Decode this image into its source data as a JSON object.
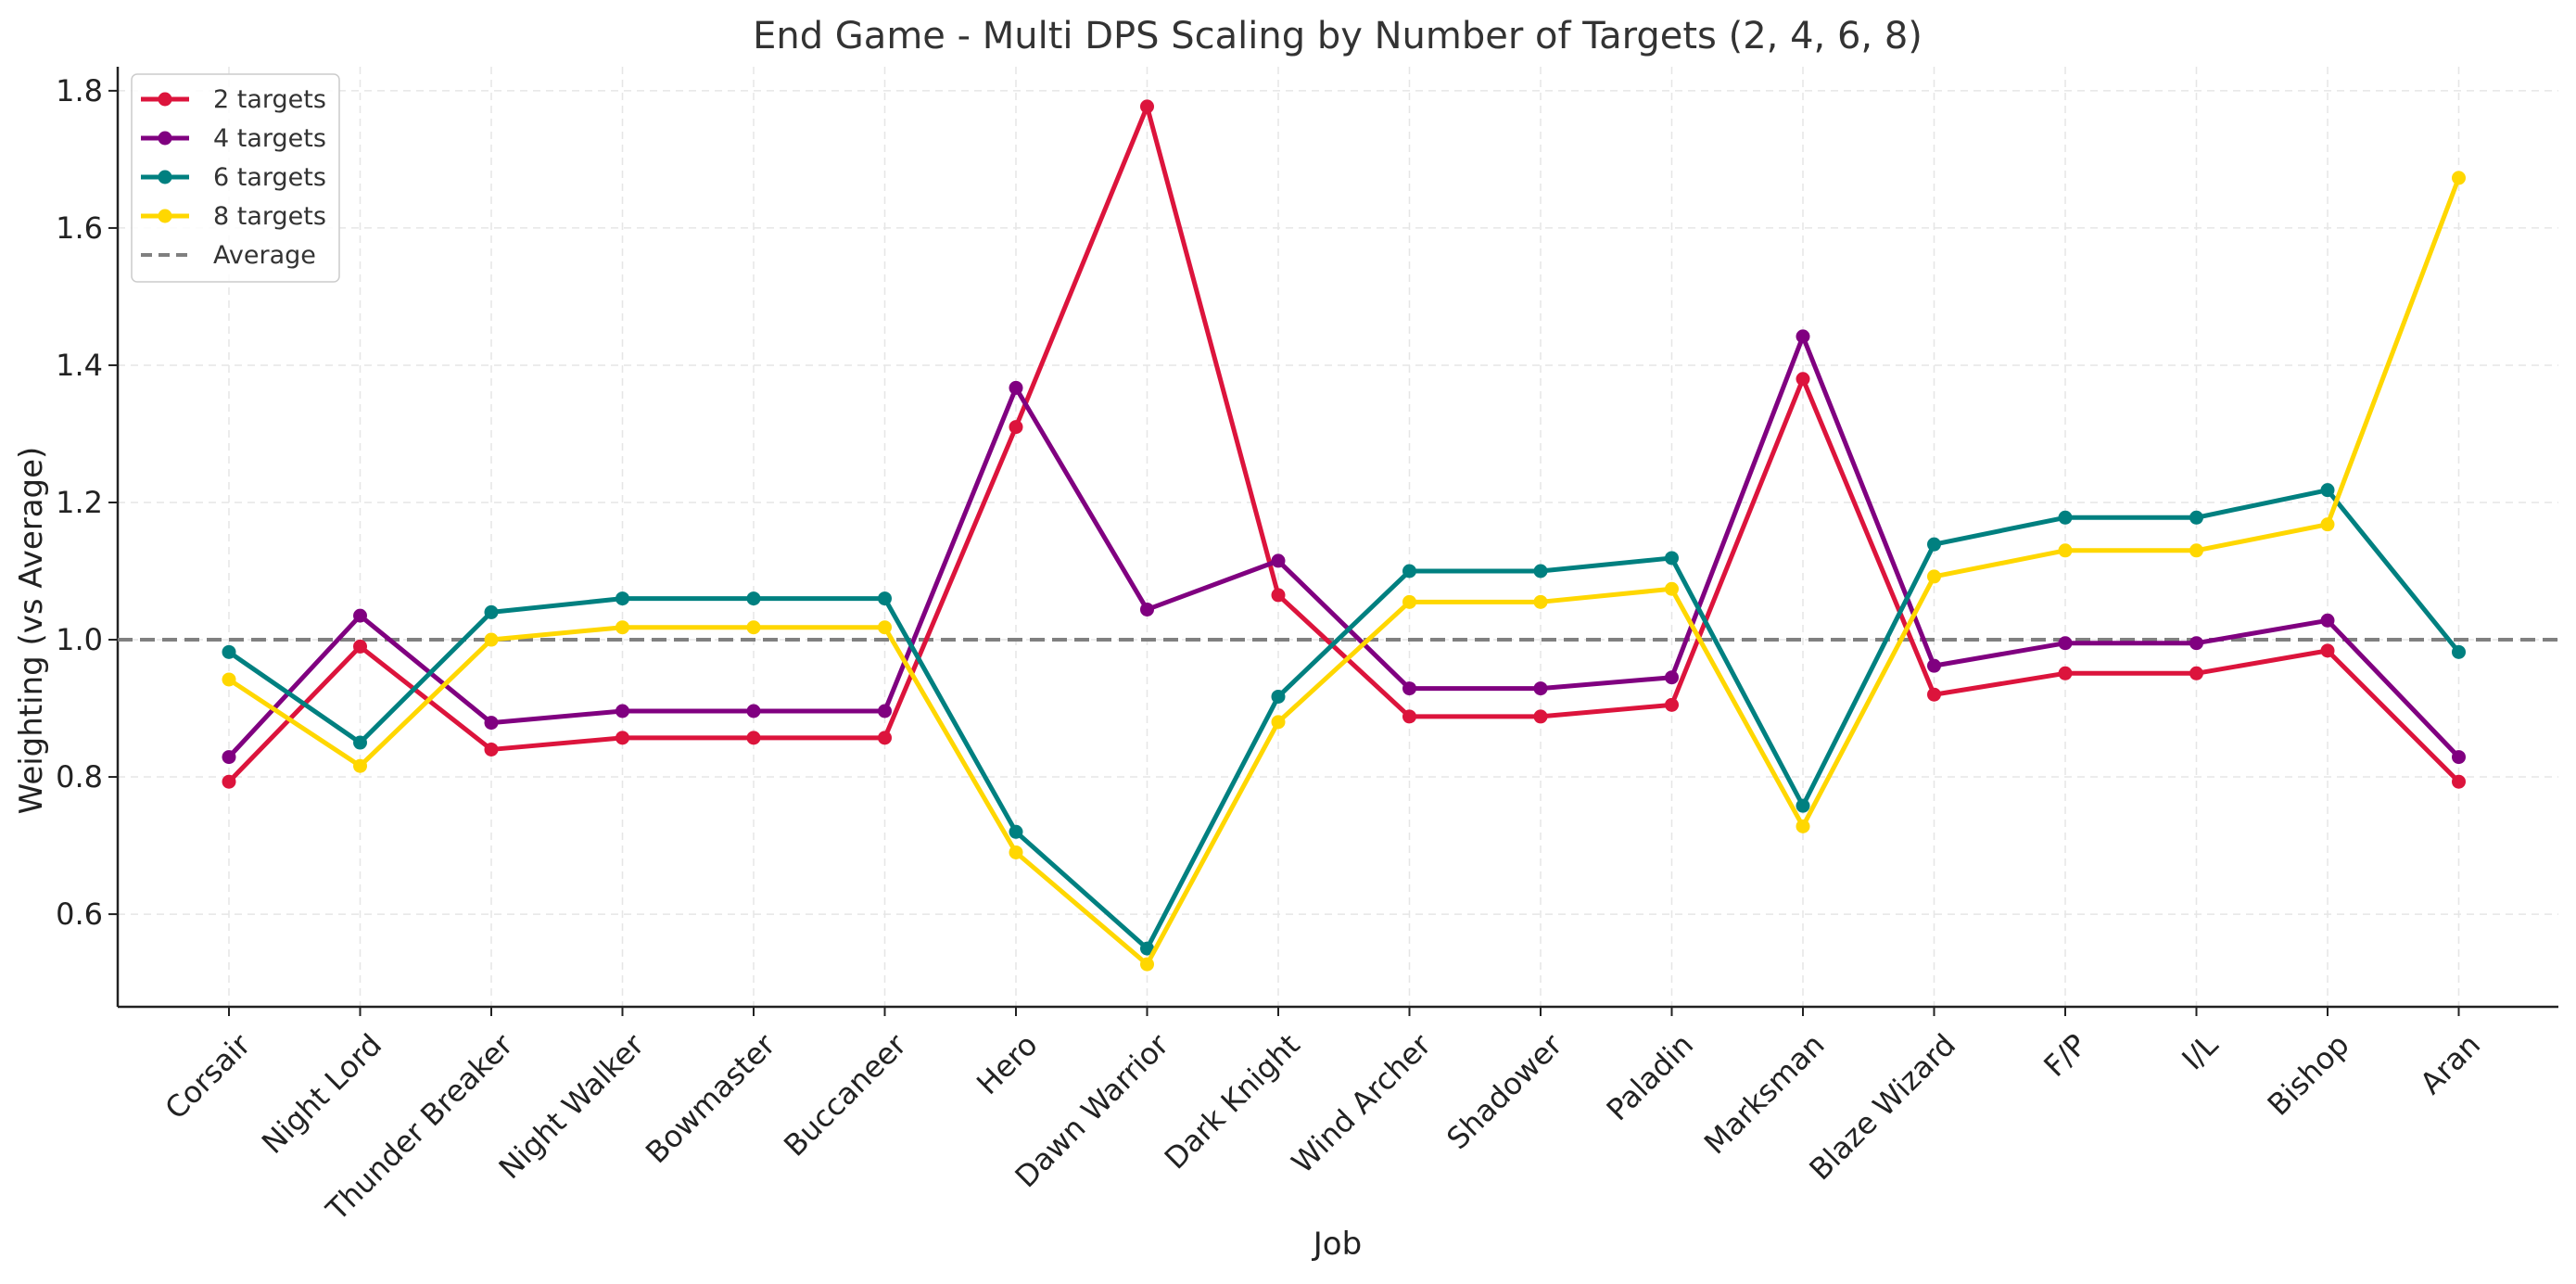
{
  "chart_data": {
    "type": "line",
    "title": "End Game - Multi DPS Scaling by Number of Targets (2, 4, 6, 8)",
    "xlabel": "Job",
    "ylabel": "Weighting (vs Average)",
    "categories": [
      "Corsair",
      "Night Lord",
      "Thunder Breaker",
      "Night Walker",
      "Bowmaster",
      "Buccaneer",
      "Hero",
      "Dawn Warrior",
      "Dark Knight",
      "Wind Archer",
      "Shadower",
      "Paladin",
      "Marksman",
      "Blaze Wizard",
      "F/P",
      "I/L",
      "Bishop",
      "Aran"
    ],
    "ylim": [
      0.465,
      1.835
    ],
    "yticks": [
      0.6,
      0.8,
      1.0,
      1.2,
      1.4,
      1.6,
      1.8
    ],
    "ytick_labels": [
      "0.6",
      "0.8",
      "1.0",
      "1.2",
      "1.4",
      "1.6",
      "1.8"
    ],
    "grid": true,
    "legend_position": "top-left",
    "series": [
      {
        "name": "2 targets",
        "color": "#dc143c",
        "values": [
          0.793,
          0.99,
          0.84,
          0.857,
          0.857,
          0.857,
          1.31,
          1.777,
          1.065,
          0.888,
          0.888,
          0.905,
          1.38,
          0.92,
          0.951,
          0.951,
          0.984,
          0.793
        ]
      },
      {
        "name": "4 targets",
        "color": "#800080",
        "values": [
          0.829,
          1.035,
          0.879,
          0.896,
          0.896,
          0.896,
          1.367,
          1.044,
          1.115,
          0.929,
          0.929,
          0.945,
          1.442,
          0.962,
          0.995,
          0.995,
          1.028,
          0.829
        ]
      },
      {
        "name": "6 targets",
        "color": "#008080",
        "values": [
          0.982,
          0.85,
          1.04,
          1.06,
          1.06,
          1.06,
          0.72,
          0.55,
          0.917,
          1.1,
          1.1,
          1.119,
          0.758,
          1.139,
          1.178,
          1.178,
          1.218,
          0.982
        ]
      },
      {
        "name": "8 targets",
        "color": "#ffd700",
        "values": [
          0.942,
          0.816,
          1.0,
          1.018,
          1.018,
          1.018,
          0.69,
          0.527,
          0.88,
          1.055,
          1.055,
          1.074,
          0.728,
          1.092,
          1.13,
          1.13,
          1.168,
          1.673
        ]
      }
    ],
    "reference_line": {
      "name": "Average",
      "value": 1.0,
      "color": "#808080",
      "style": "dashed"
    }
  }
}
